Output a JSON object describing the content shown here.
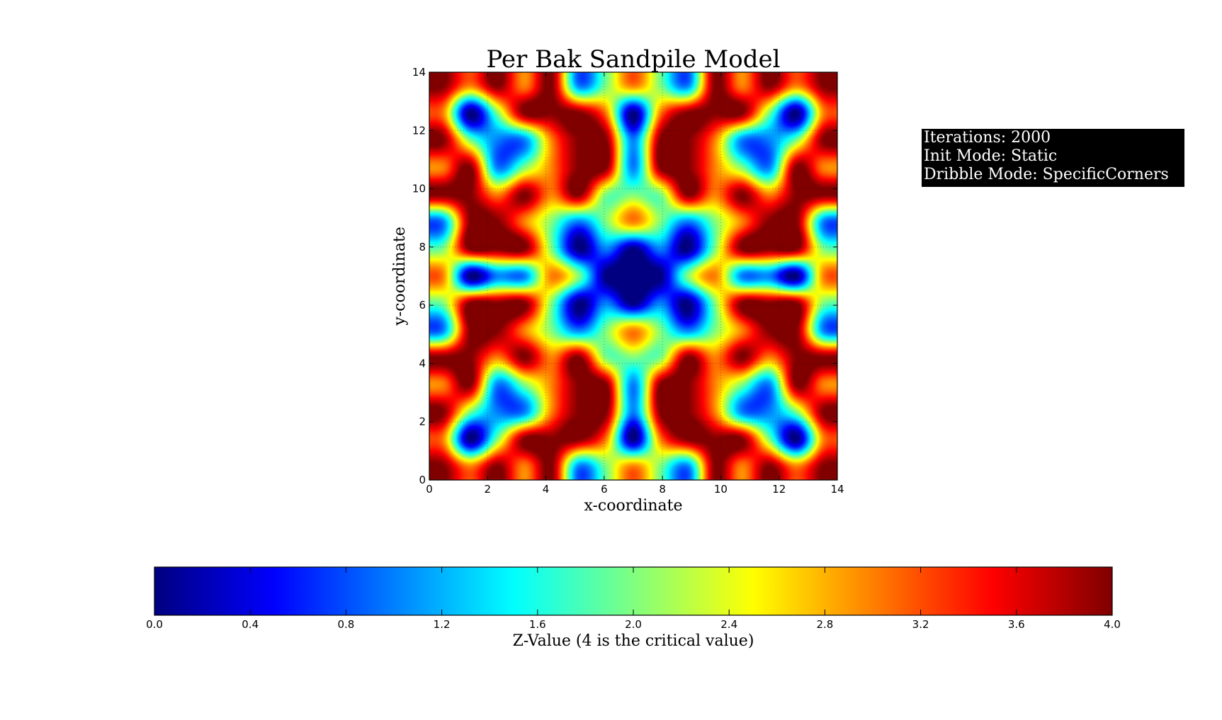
{
  "chart_data": {
    "type": "heatmap",
    "title": "Per Bak Sandpile Model",
    "xlabel": "x-coordinate",
    "ylabel": "y-coordinate",
    "xlim": [
      0,
      14
    ],
    "ylim": [
      0,
      14
    ],
    "xticks": [
      "0",
      "2",
      "4",
      "6",
      "8",
      "10",
      "12",
      "14"
    ],
    "yticks": [
      "0",
      "2",
      "4",
      "6",
      "8",
      "10",
      "12",
      "14"
    ],
    "grid": true,
    "colormap": "jet",
    "interpolation": "bicubic",
    "z_rows_top_to_bottom": [
      [
        4,
        3,
        4,
        3,
        4,
        1,
        2,
        3,
        2,
        1,
        4,
        3,
        4,
        3,
        4
      ],
      [
        3,
        0,
        2,
        4,
        4,
        4,
        3,
        0,
        3,
        4,
        4,
        4,
        2,
        0,
        3
      ],
      [
        4,
        2,
        1,
        1,
        3,
        4,
        4,
        1,
        4,
        4,
        3,
        1,
        1,
        2,
        4
      ],
      [
        3,
        4,
        1,
        2,
        3,
        4,
        4,
        1,
        4,
        4,
        3,
        2,
        1,
        4,
        3
      ],
      [
        4,
        4,
        3,
        4,
        3,
        4,
        2,
        2,
        2,
        4,
        3,
        4,
        3,
        4,
        4
      ],
      [
        1,
        4,
        4,
        3,
        2,
        1,
        2,
        3,
        2,
        1,
        2,
        3,
        4,
        4,
        1
      ],
      [
        2,
        4,
        4,
        4,
        2,
        0,
        1,
        0,
        1,
        0,
        2,
        4,
        4,
        4,
        2
      ],
      [
        3,
        0,
        1,
        1,
        3,
        2,
        0,
        0,
        0,
        2,
        3,
        1,
        1,
        0,
        3
      ],
      [
        2,
        4,
        4,
        4,
        2,
        0,
        1,
        0,
        1,
        0,
        2,
        4,
        4,
        4,
        2
      ],
      [
        1,
        4,
        4,
        3,
        2,
        1,
        2,
        3,
        2,
        1,
        2,
        3,
        4,
        4,
        1
      ],
      [
        4,
        4,
        3,
        4,
        3,
        4,
        2,
        2,
        2,
        4,
        3,
        4,
        3,
        4,
        4
      ],
      [
        3,
        4,
        1,
        2,
        3,
        4,
        4,
        1,
        4,
        4,
        3,
        2,
        1,
        4,
        3
      ],
      [
        4,
        2,
        1,
        1,
        3,
        4,
        4,
        1,
        4,
        4,
        3,
        1,
        1,
        2,
        4
      ],
      [
        3,
        0,
        2,
        4,
        4,
        4,
        3,
        0,
        3,
        4,
        4,
        4,
        2,
        0,
        3
      ],
      [
        4,
        3,
        4,
        3,
        4,
        1,
        2,
        3,
        2,
        1,
        4,
        3,
        4,
        3,
        4
      ]
    ],
    "colorbar": {
      "label": "Z-Value (4 is the critical value)",
      "range": [
        0,
        4
      ],
      "ticks": [
        "0.0",
        "0.4",
        "0.8",
        "1.2",
        "1.6",
        "2.0",
        "2.4",
        "2.8",
        "3.2",
        "3.6",
        "4.0"
      ]
    }
  },
  "info": {
    "iterations": "Iterations: 2000",
    "init_mode": "Init Mode: Static",
    "dribble_mode": "Dribble Mode: SpecificCorners"
  },
  "colors": {
    "info_box_bg": "#000000",
    "info_text": "#ffffff"
  }
}
